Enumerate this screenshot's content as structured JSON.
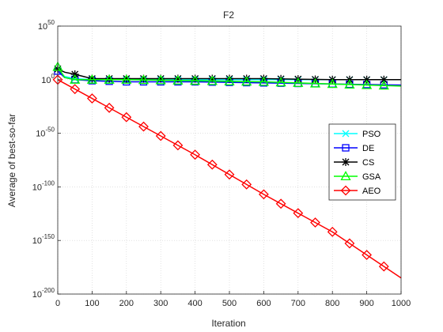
{
  "chart_data": {
    "type": "line",
    "title": "F2",
    "xlabel": "Iteration",
    "ylabel": "Average of best-so-far",
    "xlim": [
      0,
      1000
    ],
    "ylim_log10": [
      -200,
      50
    ],
    "yscale": "log",
    "xticks": [
      0,
      100,
      200,
      300,
      400,
      500,
      600,
      700,
      800,
      900,
      1000
    ],
    "yticks": [
      {
        "base": "10",
        "exp": "50",
        "log10": 50
      },
      {
        "base": "10",
        "exp": "0",
        "log10": 0
      },
      {
        "base": "10",
        "exp": "-50",
        "log10": -50
      },
      {
        "base": "10",
        "exp": "-100",
        "log10": -100
      },
      {
        "base": "10",
        "exp": "-150",
        "log10": -150
      },
      {
        "base": "10",
        "exp": "-200",
        "log10": -200
      }
    ],
    "grid": true,
    "legend_position": "right",
    "series": [
      {
        "name": "PSO",
        "color": "#00ffff",
        "marker": "x",
        "x": [
          0,
          20,
          50,
          100,
          200,
          400,
          600,
          800,
          1000
        ],
        "log10_y": [
          10,
          3,
          1,
          0,
          0,
          0,
          0,
          0,
          0
        ]
      },
      {
        "name": "DE",
        "color": "#0000ff",
        "marker": "square",
        "x": [
          0,
          20,
          50,
          100,
          200,
          400,
          600,
          800,
          1000
        ],
        "log10_y": [
          8,
          2,
          0,
          -1,
          -2,
          -2,
          -3,
          -4,
          -5
        ]
      },
      {
        "name": "CS",
        "color": "#000000",
        "marker": "asterisk",
        "x": [
          0,
          20,
          50,
          100,
          200,
          400,
          600,
          800,
          1000
        ],
        "log10_y": [
          10,
          7,
          5,
          1,
          1,
          1,
          1,
          0,
          0
        ]
      },
      {
        "name": "GSA",
        "color": "#00ff00",
        "marker": "triangle",
        "x": [
          0,
          20,
          50,
          100,
          200,
          400,
          600,
          800,
          1000
        ],
        "log10_y": [
          12,
          2,
          0,
          0,
          0,
          -1,
          -2,
          -4,
          -6
        ]
      },
      {
        "name": "AEO",
        "color": "#ff0000",
        "marker": "diamond",
        "x": [
          0,
          200,
          400,
          600,
          800,
          1000
        ],
        "log10_y": [
          0,
          -35,
          -70,
          -107,
          -142,
          -185
        ]
      }
    ]
  }
}
